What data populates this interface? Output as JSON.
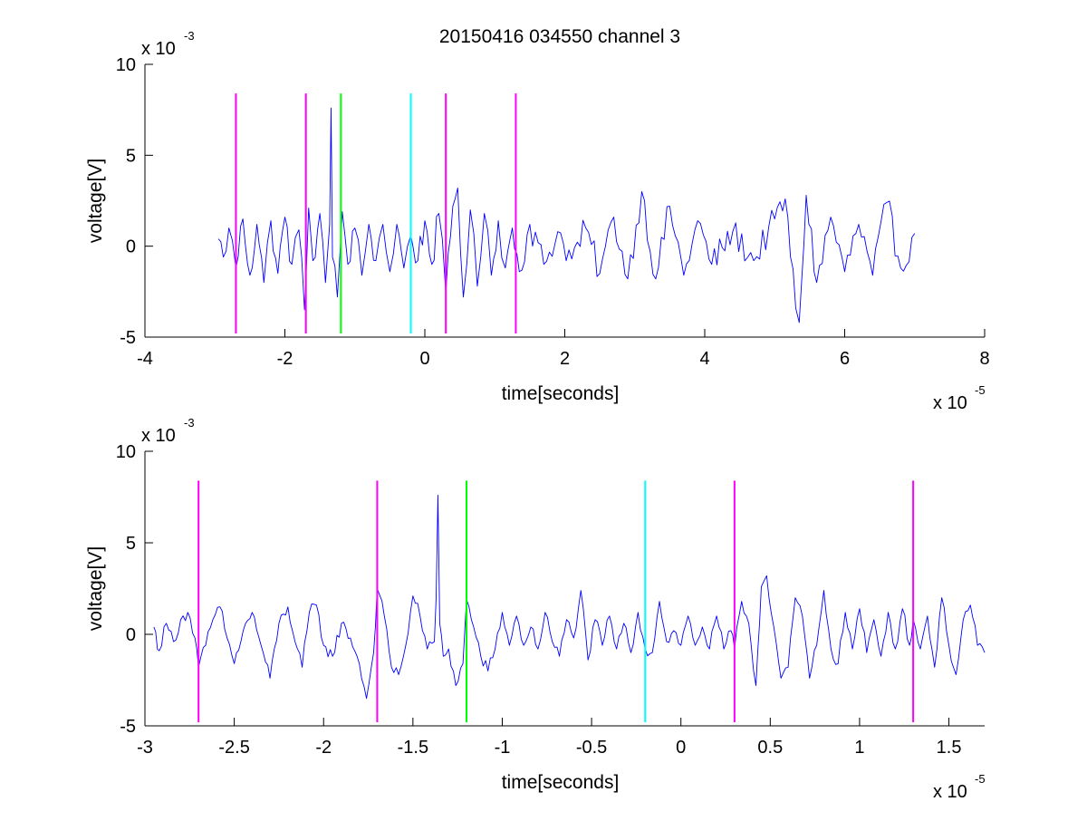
{
  "window": {
    "title": "20150416 034550 channel 3"
  },
  "colors": {
    "signal": "#0000ff",
    "magenta": "#ff00ff",
    "green": "#00ff00",
    "cyan": "#00ffff",
    "axes": "#000000",
    "background": "#ffffff"
  },
  "chart_data": [
    {
      "type": "line",
      "title": "20150416 034550 channel 3",
      "xlabel": "time[seconds]",
      "ylabel": "voltage[V]",
      "x_multiplier": {
        "base": "x 10",
        "exponent": "-5"
      },
      "y_multiplier": {
        "base": "x 10",
        "exponent": "-3"
      },
      "xlim": [
        -4,
        8
      ],
      "ylim": [
        -5,
        10
      ],
      "xticks": [
        -4,
        -2,
        0,
        2,
        4,
        6,
        8
      ],
      "xtick_labels": [
        "-4",
        "-2",
        "0",
        "2",
        "4",
        "6",
        "8"
      ],
      "yticks": [
        -5,
        0,
        5,
        10
      ],
      "ytick_labels": [
        "-5",
        "0",
        "5",
        "10"
      ],
      "grid": false,
      "series": [
        {
          "color": "#0000ff",
          "x_range": [
            -2.95,
            7.0
          ],
          "points": [
            [
              -2.95,
              0.4
            ],
            [
              -2.88,
              -0.6
            ],
            [
              -2.8,
              1.0
            ],
            [
              -2.7,
              -1.2
            ],
            [
              -2.6,
              1.5
            ],
            [
              -2.5,
              -1.6
            ],
            [
              -2.4,
              1.2
            ],
            [
              -2.3,
              -2.0
            ],
            [
              -2.2,
              1.4
            ],
            [
              -2.1,
              -1.5
            ],
            [
              -2.0,
              1.6
            ],
            [
              -1.9,
              -1.0
            ],
            [
              -1.8,
              0.9
            ],
            [
              -1.72,
              -3.5
            ],
            [
              -1.66,
              2.1
            ],
            [
              -1.6,
              -0.8
            ],
            [
              -1.5,
              1.8
            ],
            [
              -1.42,
              -2.0
            ],
            [
              -1.36,
              1.2
            ],
            [
              -1.34,
              7.6
            ],
            [
              -1.32,
              -0.6
            ],
            [
              -1.25,
              -2.8
            ],
            [
              -1.18,
              1.9
            ],
            [
              -1.1,
              -1.0
            ],
            [
              -1.0,
              1.0
            ],
            [
              -0.9,
              -1.6
            ],
            [
              -0.8,
              1.2
            ],
            [
              -0.7,
              -0.8
            ],
            [
              -0.6,
              1.2
            ],
            [
              -0.5,
              -1.4
            ],
            [
              -0.4,
              1.2
            ],
            [
              -0.3,
              -1.2
            ],
            [
              -0.2,
              0.6
            ],
            [
              -0.1,
              -0.8
            ],
            [
              0.0,
              1.4
            ],
            [
              0.1,
              -1.0
            ],
            [
              0.2,
              1.8
            ],
            [
              0.3,
              -2.6
            ],
            [
              0.4,
              2.2
            ],
            [
              0.47,
              3.2
            ],
            [
              0.55,
              -2.8
            ],
            [
              0.65,
              2.0
            ],
            [
              0.75,
              -2.2
            ],
            [
              0.85,
              1.8
            ],
            [
              0.95,
              -1.6
            ],
            [
              1.05,
              1.4
            ],
            [
              1.15,
              -1.2
            ],
            [
              1.25,
              1.0
            ],
            [
              1.35,
              -1.4
            ],
            [
              1.5,
              1.2
            ],
            [
              1.7,
              -1.0
            ],
            [
              1.9,
              0.8
            ],
            [
              2.1,
              -0.7
            ],
            [
              2.3,
              1.0
            ],
            [
              2.5,
              -1.5
            ],
            [
              2.7,
              1.6
            ],
            [
              2.9,
              -1.8
            ],
            [
              3.1,
              3.0
            ],
            [
              3.3,
              -1.8
            ],
            [
              3.5,
              2.2
            ],
            [
              3.7,
              -1.6
            ],
            [
              3.9,
              1.4
            ],
            [
              4.1,
              -1.0
            ],
            [
              4.4,
              0.8
            ],
            [
              4.7,
              -0.8
            ],
            [
              5.0,
              1.5
            ],
            [
              5.15,
              2.6
            ],
            [
              5.3,
              -3.4
            ],
            [
              5.35,
              -4.2
            ],
            [
              5.45,
              2.8
            ],
            [
              5.6,
              -2.0
            ],
            [
              5.8,
              1.6
            ],
            [
              6.0,
              -1.4
            ],
            [
              6.2,
              1.2
            ],
            [
              6.4,
              -1.6
            ],
            [
              6.6,
              2.4
            ],
            [
              6.8,
              -1.2
            ],
            [
              7.0,
              0.7
            ]
          ]
        }
      ],
      "markers": [
        {
          "x": -2.7,
          "color": "#ff00ff"
        },
        {
          "x": -1.7,
          "color": "#ff00ff"
        },
        {
          "x": -1.2,
          "color": "#00ff00"
        },
        {
          "x": -0.2,
          "color": "#00ffff"
        },
        {
          "x": 0.3,
          "color": "#ff00ff"
        },
        {
          "x": 1.3,
          "color": "#ff00ff"
        }
      ],
      "marker_ylim": [
        -4.8,
        8.4
      ]
    },
    {
      "type": "line",
      "title": "",
      "xlabel": "time[seconds]",
      "ylabel": "voltage[V]",
      "x_multiplier": {
        "base": "x 10",
        "exponent": "-5"
      },
      "y_multiplier": {
        "base": "x 10",
        "exponent": "-3"
      },
      "xlim": [
        -3.0,
        1.7
      ],
      "ylim": [
        -5,
        10
      ],
      "xticks": [
        -3,
        -2.5,
        -2,
        -1.5,
        -1,
        -0.5,
        0,
        0.5,
        1,
        1.5
      ],
      "xtick_labels": [
        "-3",
        "-2.5",
        "-2",
        "-1.5",
        "-1",
        "-0.5",
        "0",
        "0.5",
        "1",
        "1.5"
      ],
      "yticks": [
        -5,
        0,
        5,
        10
      ],
      "ytick_labels": [
        "-5",
        "0",
        "5",
        "10"
      ],
      "grid": false,
      "series": [
        {
          "color": "#0000ff",
          "x_range": [
            -2.95,
            1.7
          ],
          "points": [
            [
              -2.95,
              0.4
            ],
            [
              -2.92,
              -0.9
            ],
            [
              -2.88,
              0.6
            ],
            [
              -2.84,
              -0.4
            ],
            [
              -2.8,
              0.8
            ],
            [
              -2.76,
              1.2
            ],
            [
              -2.72,
              -0.2
            ],
            [
              -2.7,
              -1.8
            ],
            [
              -2.66,
              -0.6
            ],
            [
              -2.62,
              0.8
            ],
            [
              -2.58,
              1.5
            ],
            [
              -2.54,
              -0.2
            ],
            [
              -2.5,
              -1.6
            ],
            [
              -2.45,
              0.2
            ],
            [
              -2.4,
              1.2
            ],
            [
              -2.35,
              -0.6
            ],
            [
              -2.3,
              -2.4
            ],
            [
              -2.25,
              0.6
            ],
            [
              -2.2,
              1.5
            ],
            [
              -2.16,
              -0.4
            ],
            [
              -2.12,
              -1.8
            ],
            [
              -2.08,
              1.2
            ],
            [
              -2.04,
              1.6
            ],
            [
              -2.0,
              -0.6
            ],
            [
              -1.95,
              -1.2
            ],
            [
              -1.9,
              0.6
            ],
            [
              -1.85,
              -0.2
            ],
            [
              -1.8,
              -1.6
            ],
            [
              -1.76,
              -3.5
            ],
            [
              -1.72,
              -1.0
            ],
            [
              -1.7,
              2.5
            ],
            [
              -1.66,
              1.0
            ],
            [
              -1.62,
              -1.8
            ],
            [
              -1.58,
              -2.2
            ],
            [
              -1.54,
              -0.6
            ],
            [
              -1.5,
              2.1
            ],
            [
              -1.46,
              1.0
            ],
            [
              -1.42,
              -0.8
            ],
            [
              -1.38,
              -0.4
            ],
            [
              -1.37,
              2.0
            ],
            [
              -1.36,
              7.6
            ],
            [
              -1.35,
              0.6
            ],
            [
              -1.33,
              -1.2
            ],
            [
              -1.3,
              -0.8
            ],
            [
              -1.26,
              -2.8
            ],
            [
              -1.22,
              -1.6
            ],
            [
              -1.2,
              1.9
            ],
            [
              -1.16,
              0.4
            ],
            [
              -1.12,
              -1.2
            ],
            [
              -1.08,
              -2.0
            ],
            [
              -1.04,
              -0.8
            ],
            [
              -1.0,
              1.2
            ],
            [
              -0.96,
              -0.6
            ],
            [
              -0.92,
              1.0
            ],
            [
              -0.88,
              -0.6
            ],
            [
              -0.84,
              0.4
            ],
            [
              -0.8,
              -0.8
            ],
            [
              -0.76,
              1.2
            ],
            [
              -0.72,
              -0.4
            ],
            [
              -0.68,
              -1.2
            ],
            [
              -0.64,
              0.8
            ],
            [
              -0.6,
              -0.2
            ],
            [
              -0.56,
              2.4
            ],
            [
              -0.52,
              -1.4
            ],
            [
              -0.48,
              0.8
            ],
            [
              -0.44,
              -0.6
            ],
            [
              -0.4,
              1.0
            ],
            [
              -0.36,
              -0.8
            ],
            [
              -0.32,
              0.6
            ],
            [
              -0.28,
              -1.0
            ],
            [
              -0.24,
              1.2
            ],
            [
              -0.2,
              -0.8
            ],
            [
              -0.16,
              -1.0
            ],
            [
              -0.12,
              1.8
            ],
            [
              -0.08,
              -0.4
            ],
            [
              -0.04,
              0.2
            ],
            [
              0.0,
              -0.6
            ],
            [
              0.04,
              1.0
            ],
            [
              0.08,
              -0.6
            ],
            [
              0.12,
              0.4
            ],
            [
              0.16,
              -0.8
            ],
            [
              0.2,
              1.0
            ],
            [
              0.24,
              -0.8
            ],
            [
              0.28,
              0.2
            ],
            [
              0.3,
              -0.8
            ],
            [
              0.34,
              1.8
            ],
            [
              0.38,
              0.6
            ],
            [
              0.42,
              -2.8
            ],
            [
              0.45,
              2.6
            ],
            [
              0.48,
              3.2
            ],
            [
              0.52,
              0.4
            ],
            [
              0.56,
              -2.4
            ],
            [
              0.6,
              -1.8
            ],
            [
              0.64,
              2.0
            ],
            [
              0.68,
              1.0
            ],
            [
              0.72,
              -2.4
            ],
            [
              0.76,
              -0.6
            ],
            [
              0.8,
              2.4
            ],
            [
              0.84,
              -0.8
            ],
            [
              0.88,
              -1.6
            ],
            [
              0.92,
              1.2
            ],
            [
              0.96,
              -0.8
            ],
            [
              1.0,
              1.4
            ],
            [
              1.04,
              -1.0
            ],
            [
              1.08,
              0.8
            ],
            [
              1.12,
              -1.2
            ],
            [
              1.16,
              1.2
            ],
            [
              1.2,
              -0.8
            ],
            [
              1.24,
              1.4
            ],
            [
              1.28,
              -0.6
            ],
            [
              1.3,
              0.8
            ],
            [
              1.34,
              -0.8
            ],
            [
              1.38,
              1.0
            ],
            [
              1.42,
              -1.8
            ],
            [
              1.46,
              2.0
            ],
            [
              1.5,
              -0.6
            ],
            [
              1.54,
              -2.2
            ],
            [
              1.58,
              0.8
            ],
            [
              1.62,
              1.6
            ],
            [
              1.66,
              -0.6
            ],
            [
              1.7,
              -1.0
            ]
          ]
        }
      ],
      "markers": [
        {
          "x": -2.7,
          "color": "#ff00ff"
        },
        {
          "x": -1.7,
          "color": "#ff00ff"
        },
        {
          "x": -1.2,
          "color": "#00ff00"
        },
        {
          "x": -0.2,
          "color": "#00ffff"
        },
        {
          "x": 0.3,
          "color": "#ff00ff"
        },
        {
          "x": 1.3,
          "color": "#ff00ff"
        }
      ],
      "marker_ylim": [
        -4.8,
        8.4
      ]
    }
  ]
}
